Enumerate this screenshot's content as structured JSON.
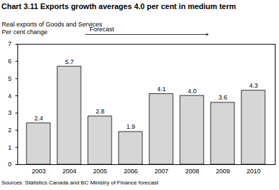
{
  "chart_data": {
    "type": "bar",
    "title": "Chart 3.11 Exports growth averages 4.0 per cent in medium term",
    "subtitle": "Real exports of Goods and Services",
    "ylabel": "Per cent change",
    "caption": "Sources: Statistics Canada and BC Ministry of Finance forecast",
    "annotations": [
      {
        "text": "Forecast",
        "x_from": "2005",
        "x_to": "2009"
      }
    ],
    "categories": [
      "2003",
      "2004",
      "2005",
      "2006",
      "2007",
      "2008",
      "2009",
      "2010"
    ],
    "values": [
      2.4,
      5.7,
      2.8,
      1.9,
      4.1,
      4.0,
      3.6,
      4.3
    ],
    "value_labels": [
      "2.4",
      "5.7",
      "2.8",
      "1.9",
      "4.1",
      "4.0",
      "3.6",
      "4.3"
    ],
    "color": "#d6d6d6",
    "ylim": [
      0,
      7
    ],
    "yticks": [
      0,
      1,
      2,
      3,
      4,
      5,
      6,
      7
    ],
    "grid": false,
    "data_labels": true
  }
}
